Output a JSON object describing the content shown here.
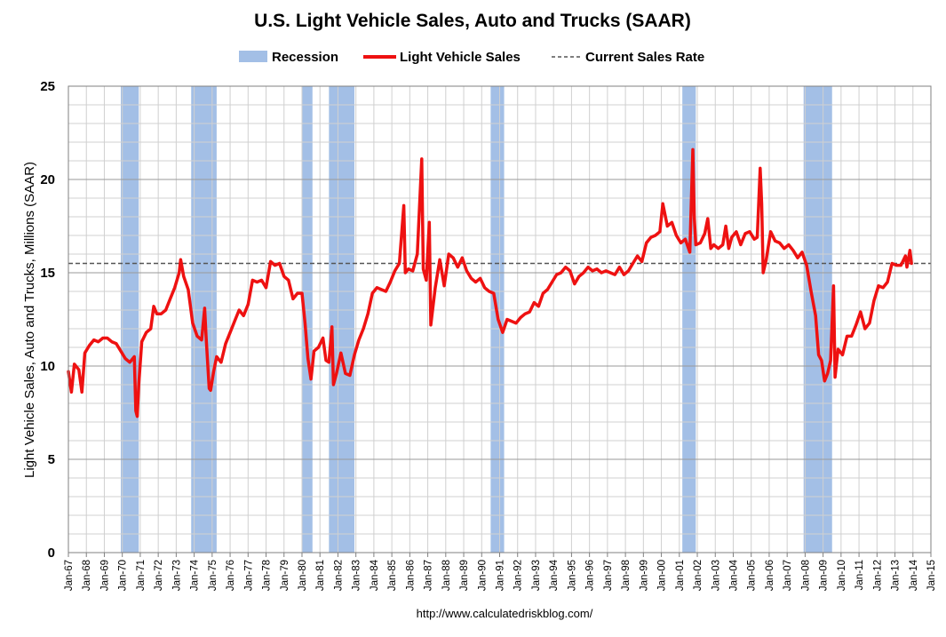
{
  "chart_data": {
    "type": "line",
    "title": "U.S. Light Vehicle Sales, Auto and Trucks (SAAR)",
    "ylabel": "Light Vehicle Sales, Auto and Trucks, Millions (SAAR)",
    "xlabel": "",
    "source": "http://www.calculatedriskblog.com/",
    "ylim": [
      0,
      25
    ],
    "yticks": [
      0,
      5,
      10,
      15,
      20,
      25
    ],
    "x_range": [
      "Jan-67",
      "Jan-15"
    ],
    "xticks": [
      "Jan-67",
      "Jan-68",
      "Jan-69",
      "Jan-70",
      "Jan-71",
      "Jan-72",
      "Jan-73",
      "Jan-74",
      "Jan-75",
      "Jan-76",
      "Jan-77",
      "Jan-78",
      "Jan-79",
      "Jan-80",
      "Jan-81",
      "Jan-82",
      "Jan-83",
      "Jan-84",
      "Jan-85",
      "Jan-86",
      "Jan-87",
      "Jan-88",
      "Jan-89",
      "Jan-90",
      "Jan-91",
      "Jan-92",
      "Jan-93",
      "Jan-94",
      "Jan-95",
      "Jan-96",
      "Jan-97",
      "Jan-98",
      "Jan-99",
      "Jan-00",
      "Jan-01",
      "Jan-02",
      "Jan-03",
      "Jan-04",
      "Jan-05",
      "Jan-06",
      "Jan-07",
      "Jan-08",
      "Jan-09",
      "Jan-10",
      "Jan-11",
      "Jan-12",
      "Jan-13",
      "Jan-14",
      "Jan-15"
    ],
    "grid": true,
    "legend": {
      "placement": "top-center",
      "items": [
        {
          "label": "Recession",
          "kind": "band",
          "color": "#a3bfe6"
        },
        {
          "label": "Light Vehicle Sales",
          "kind": "line",
          "color": "#ee1111"
        },
        {
          "label": "Current Sales Rate",
          "kind": "dashed",
          "color": "#555555"
        }
      ]
    },
    "colors": {
      "line": "#ee1111",
      "recession": "#a3bfe6",
      "current_rate": "#555555",
      "grid": "#999999",
      "minor_grid": "#d0d0d0"
    },
    "current_sales_rate": 15.5,
    "recessions": [
      {
        "start": "Dec-69",
        "end": "Nov-70"
      },
      {
        "start": "Nov-73",
        "end": "Mar-75"
      },
      {
        "start": "Jan-80",
        "end": "Jul-80"
      },
      {
        "start": "Jul-81",
        "end": "Nov-82"
      },
      {
        "start": "Jul-90",
        "end": "Mar-91"
      },
      {
        "start": "Mar-01",
        "end": "Nov-01"
      },
      {
        "start": "Dec-07",
        "end": "Jun-09"
      }
    ],
    "series": [
      {
        "name": "Light Vehicle Sales",
        "points": [
          [
            "Jan-67",
            9.7
          ],
          [
            "Mar-67",
            8.6
          ],
          [
            "May-67",
            10.1
          ],
          [
            "Aug-67",
            9.8
          ],
          [
            "Oct-67",
            8.6
          ],
          [
            "Dec-67",
            10.7
          ],
          [
            "Mar-68",
            11.1
          ],
          [
            "Jun-68",
            11.4
          ],
          [
            "Sep-68",
            11.3
          ],
          [
            "Dec-68",
            11.5
          ],
          [
            "Mar-69",
            11.5
          ],
          [
            "Jun-69",
            11.3
          ],
          [
            "Sep-69",
            11.2
          ],
          [
            "Dec-69",
            10.8
          ],
          [
            "Mar-70",
            10.4
          ],
          [
            "Jun-70",
            10.2
          ],
          [
            "Sep-70",
            10.5
          ],
          [
            "Oct-70",
            7.6
          ],
          [
            "Nov-70",
            7.3
          ],
          [
            "Dec-70",
            9.0
          ],
          [
            "Feb-71",
            11.3
          ],
          [
            "May-71",
            11.8
          ],
          [
            "Aug-71",
            12.0
          ],
          [
            "Oct-71",
            13.2
          ],
          [
            "Dec-71",
            12.8
          ],
          [
            "Mar-72",
            12.8
          ],
          [
            "Jun-72",
            13.0
          ],
          [
            "Sep-72",
            13.6
          ],
          [
            "Dec-72",
            14.2
          ],
          [
            "Mar-73",
            15.0
          ],
          [
            "Apr-73",
            15.7
          ],
          [
            "Jun-73",
            14.8
          ],
          [
            "Sep-73",
            14.1
          ],
          [
            "Dec-73",
            12.3
          ],
          [
            "Mar-74",
            11.6
          ],
          [
            "Jun-74",
            11.4
          ],
          [
            "Aug-74",
            13.1
          ],
          [
            "Sep-74",
            11.5
          ],
          [
            "Nov-74",
            8.8
          ],
          [
            "Dec-74",
            8.7
          ],
          [
            "Feb-75",
            9.7
          ],
          [
            "Apr-75",
            10.5
          ],
          [
            "Jul-75",
            10.2
          ],
          [
            "Oct-75",
            11.2
          ],
          [
            "Jan-76",
            11.8
          ],
          [
            "Apr-76",
            12.4
          ],
          [
            "Jul-76",
            13.0
          ],
          [
            "Oct-76",
            12.7
          ],
          [
            "Jan-77",
            13.3
          ],
          [
            "Apr-77",
            14.6
          ],
          [
            "Jul-77",
            14.5
          ],
          [
            "Oct-77",
            14.6
          ],
          [
            "Jan-78",
            14.2
          ],
          [
            "Apr-78",
            15.6
          ],
          [
            "Jul-78",
            15.4
          ],
          [
            "Oct-78",
            15.5
          ],
          [
            "Jan-79",
            14.8
          ],
          [
            "Apr-79",
            14.6
          ],
          [
            "Jul-79",
            13.6
          ],
          [
            "Oct-79",
            13.9
          ],
          [
            "Jan-80",
            13.9
          ],
          [
            "Mar-80",
            12.3
          ],
          [
            "May-80",
            10.4
          ],
          [
            "Jul-80",
            9.3
          ],
          [
            "Sep-80",
            10.8
          ],
          [
            "Dec-80",
            11.0
          ],
          [
            "Mar-81",
            11.5
          ],
          [
            "May-81",
            10.3
          ],
          [
            "Jul-81",
            10.2
          ],
          [
            "Sep-81",
            12.1
          ],
          [
            "Oct-81",
            9.0
          ],
          [
            "Dec-81",
            9.6
          ],
          [
            "Mar-82",
            10.7
          ],
          [
            "Jun-82",
            9.6
          ],
          [
            "Sep-82",
            9.5
          ],
          [
            "Dec-82",
            10.6
          ],
          [
            "Mar-83",
            11.4
          ],
          [
            "Jun-83",
            12.0
          ],
          [
            "Sep-83",
            12.8
          ],
          [
            "Dec-83",
            13.9
          ],
          [
            "Mar-84",
            14.2
          ],
          [
            "Jun-84",
            14.1
          ],
          [
            "Sep-84",
            14.0
          ],
          [
            "Dec-84",
            14.5
          ],
          [
            "Mar-85",
            15.1
          ],
          [
            "Jun-85",
            15.5
          ],
          [
            "Sep-85",
            18.6
          ],
          [
            "Oct-85",
            15.0
          ],
          [
            "Dec-85",
            15.2
          ],
          [
            "Mar-86",
            15.1
          ],
          [
            "Jun-86",
            16.0
          ],
          [
            "Sep-86",
            21.1
          ],
          [
            "Oct-86",
            15.2
          ],
          [
            "Dec-86",
            14.6
          ],
          [
            "Feb-87",
            17.7
          ],
          [
            "Mar-87",
            12.2
          ],
          [
            "Jun-87",
            14.2
          ],
          [
            "Sep-87",
            15.7
          ],
          [
            "Dec-87",
            14.3
          ],
          [
            "Mar-88",
            16.0
          ],
          [
            "Jun-88",
            15.8
          ],
          [
            "Sep-88",
            15.3
          ],
          [
            "Dec-88",
            15.8
          ],
          [
            "Mar-89",
            15.1
          ],
          [
            "Jun-89",
            14.7
          ],
          [
            "Sep-89",
            14.5
          ],
          [
            "Dec-89",
            14.7
          ],
          [
            "Mar-90",
            14.2
          ],
          [
            "Jun-90",
            14.0
          ],
          [
            "Sep-90",
            13.9
          ],
          [
            "Dec-90",
            12.5
          ],
          [
            "Mar-91",
            11.8
          ],
          [
            "Jun-91",
            12.5
          ],
          [
            "Sep-91",
            12.4
          ],
          [
            "Dec-91",
            12.3
          ],
          [
            "Mar-92",
            12.6
          ],
          [
            "Jun-92",
            12.8
          ],
          [
            "Sep-92",
            12.9
          ],
          [
            "Dec-92",
            13.4
          ],
          [
            "Mar-93",
            13.2
          ],
          [
            "Jun-93",
            13.9
          ],
          [
            "Sep-93",
            14.1
          ],
          [
            "Dec-93",
            14.5
          ],
          [
            "Mar-94",
            14.9
          ],
          [
            "Jun-94",
            15.0
          ],
          [
            "Sep-94",
            15.3
          ],
          [
            "Dec-94",
            15.1
          ],
          [
            "Mar-95",
            14.4
          ],
          [
            "Jun-95",
            14.8
          ],
          [
            "Sep-95",
            15.0
          ],
          [
            "Dec-95",
            15.3
          ],
          [
            "Mar-96",
            15.1
          ],
          [
            "Jun-96",
            15.2
          ],
          [
            "Sep-96",
            15.0
          ],
          [
            "Dec-96",
            15.1
          ],
          [
            "Mar-97",
            15.0
          ],
          [
            "Jun-97",
            14.9
          ],
          [
            "Sep-97",
            15.3
          ],
          [
            "Dec-97",
            14.9
          ],
          [
            "Mar-98",
            15.1
          ],
          [
            "Jun-98",
            15.5
          ],
          [
            "Sep-98",
            15.9
          ],
          [
            "Dec-98",
            15.6
          ],
          [
            "Mar-99",
            16.6
          ],
          [
            "Jun-99",
            16.9
          ],
          [
            "Sep-99",
            17.0
          ],
          [
            "Dec-99",
            17.2
          ],
          [
            "Feb-00",
            18.7
          ],
          [
            "May-00",
            17.5
          ],
          [
            "Aug-00",
            17.7
          ],
          [
            "Nov-00",
            17.0
          ],
          [
            "Feb-01",
            16.6
          ],
          [
            "May-01",
            16.8
          ],
          [
            "Aug-01",
            16.1
          ],
          [
            "Oct-01",
            21.6
          ],
          [
            "Nov-01",
            18.0
          ],
          [
            "Dec-01",
            16.5
          ],
          [
            "Mar-02",
            16.6
          ],
          [
            "Jun-02",
            17.1
          ],
          [
            "Aug-02",
            17.9
          ],
          [
            "Oct-02",
            16.3
          ],
          [
            "Dec-02",
            16.5
          ],
          [
            "Mar-03",
            16.3
          ],
          [
            "Jun-03",
            16.5
          ],
          [
            "Aug-03",
            17.5
          ],
          [
            "Oct-03",
            16.3
          ],
          [
            "Dec-03",
            16.9
          ],
          [
            "Mar-04",
            17.2
          ],
          [
            "Jun-04",
            16.5
          ],
          [
            "Sep-04",
            17.1
          ],
          [
            "Dec-04",
            17.2
          ],
          [
            "Mar-05",
            16.8
          ],
          [
            "May-05",
            16.9
          ],
          [
            "Jul-05",
            20.6
          ],
          [
            "Aug-05",
            18.7
          ],
          [
            "Sep-05",
            15.0
          ],
          [
            "Nov-05",
            15.7
          ],
          [
            "Feb-06",
            17.2
          ],
          [
            "May-06",
            16.7
          ],
          [
            "Aug-06",
            16.6
          ],
          [
            "Nov-06",
            16.3
          ],
          [
            "Feb-07",
            16.5
          ],
          [
            "May-07",
            16.2
          ],
          [
            "Aug-07",
            15.8
          ],
          [
            "Nov-07",
            16.1
          ],
          [
            "Feb-08",
            15.4
          ],
          [
            "May-08",
            14.0
          ],
          [
            "Aug-08",
            12.7
          ],
          [
            "Oct-08",
            10.6
          ],
          [
            "Dec-08",
            10.3
          ],
          [
            "Feb-09",
            9.2
          ],
          [
            "Apr-09",
            9.6
          ],
          [
            "Jun-09",
            10.3
          ],
          [
            "Aug-09",
            14.3
          ],
          [
            "Sep-09",
            9.4
          ],
          [
            "Nov-09",
            10.9
          ],
          [
            "Feb-10",
            10.6
          ],
          [
            "May-10",
            11.6
          ],
          [
            "Aug-10",
            11.6
          ],
          [
            "Nov-10",
            12.2
          ],
          [
            "Feb-11",
            12.9
          ],
          [
            "May-11",
            12.0
          ],
          [
            "Aug-11",
            12.3
          ],
          [
            "Nov-11",
            13.5
          ],
          [
            "Feb-12",
            14.3
          ],
          [
            "May-12",
            14.2
          ],
          [
            "Aug-12",
            14.5
          ],
          [
            "Nov-12",
            15.5
          ],
          [
            "Feb-13",
            15.4
          ],
          [
            "May-13",
            15.4
          ],
          [
            "Aug-13",
            15.9
          ],
          [
            "Sep-13",
            15.3
          ],
          [
            "Nov-13",
            16.2
          ],
          [
            "Dec-13",
            15.5
          ]
        ]
      }
    ]
  }
}
